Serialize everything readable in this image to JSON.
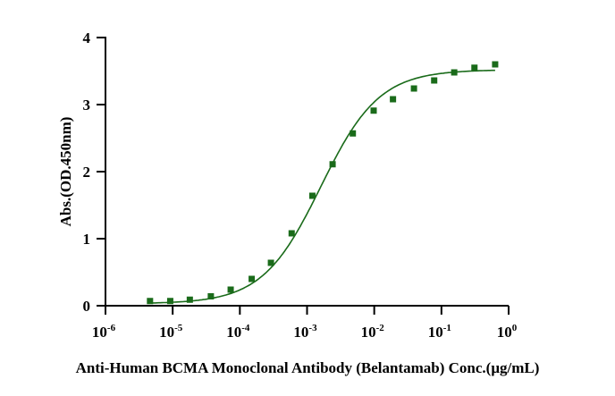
{
  "chart_data": {
    "type": "scatter",
    "title": "",
    "xlabel": "Anti-Human BCMA Monoclonal Antibody (Belantamab) Conc.(μg/mL)",
    "ylabel": "Abs.(OD.450nm)",
    "xscale": "log",
    "xlim": [
      1e-06,
      1
    ],
    "ylim": [
      0,
      4
    ],
    "x_ticks": [
      {
        "base": "10",
        "exp": "-6"
      },
      {
        "base": "10",
        "exp": "-5"
      },
      {
        "base": "10",
        "exp": "-4"
      },
      {
        "base": "10",
        "exp": "-3"
      },
      {
        "base": "10",
        "exp": "-2"
      },
      {
        "base": "10",
        "exp": "-1"
      },
      {
        "base": "10",
        "exp": "0"
      }
    ],
    "y_ticks": [
      "0",
      "1",
      "2",
      "3",
      "4"
    ],
    "grid": false,
    "series": [
      {
        "name": "Belantamab",
        "color": "#1a6b1a",
        "marker": "square",
        "x": [
          4.6e-06,
          9.2e-06,
          1.8e-05,
          3.7e-05,
          7.3e-05,
          0.00015,
          0.00029,
          0.00059,
          0.0012,
          0.0024,
          0.0048,
          0.0098,
          0.019,
          0.039,
          0.078,
          0.155,
          0.31,
          0.63
        ],
        "y": [
          0.07,
          0.07,
          0.09,
          0.14,
          0.24,
          0.4,
          0.64,
          1.08,
          1.64,
          2.11,
          2.57,
          2.91,
          3.08,
          3.24,
          3.36,
          3.48,
          3.55,
          3.6
        ],
        "fit": {
          "model": "4PL",
          "bottom": 0.03,
          "top": 3.52,
          "ec50": 0.0016,
          "hill": 1.0
        }
      }
    ]
  }
}
